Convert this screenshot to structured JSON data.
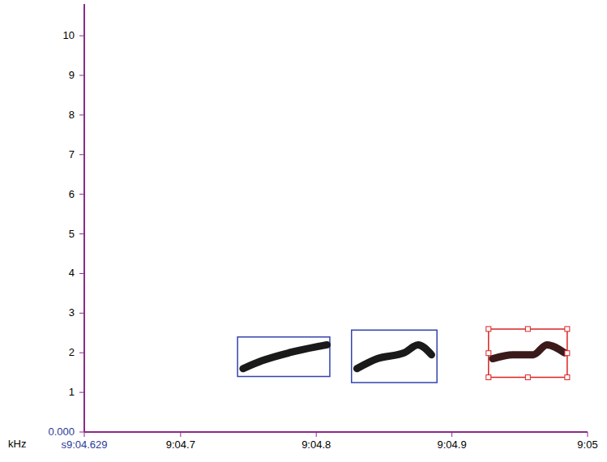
{
  "chart_data": {
    "type": "spectrogram",
    "y_label": "kHz",
    "xlim": [
      544.629,
      545.0
    ],
    "xticks": [
      {
        "value": 544.629,
        "label": "s9:04.629"
      },
      {
        "value": 544.7,
        "label": "9:04.7"
      },
      {
        "value": 544.8,
        "label": "9:04.8"
      },
      {
        "value": 544.9,
        "label": "9:04.9"
      },
      {
        "value": 545.0,
        "label": "9:05"
      }
    ],
    "ylim": [
      0,
      10.8
    ],
    "yticks": [
      {
        "value": 0,
        "label": "0.000"
      },
      1,
      2,
      3,
      4,
      5,
      6,
      7,
      8,
      9,
      10
    ],
    "calls": [
      {
        "color": "#1a1a1a",
        "x": [
          544.746,
          544.76,
          544.78,
          544.8,
          544.808
        ],
        "y": [
          1.6,
          1.8,
          2.0,
          2.15,
          2.2
        ]
      },
      {
        "color": "#1a1a1a",
        "x": [
          544.83,
          544.845,
          544.865,
          544.875,
          544.885
        ],
        "y": [
          1.6,
          1.85,
          2.0,
          2.2,
          1.95
        ]
      },
      {
        "color": "#3a1a1a",
        "x": [
          544.93,
          544.945,
          544.96,
          544.97,
          544.983
        ],
        "y": [
          1.85,
          1.95,
          1.95,
          2.2,
          2.0
        ]
      }
    ],
    "boxes": [
      {
        "color": "#3344aa",
        "x": [
          544.742,
          544.81
        ],
        "y": [
          1.4,
          2.4
        ]
      },
      {
        "color": "#3344aa",
        "x": [
          544.826,
          544.889
        ],
        "y": [
          1.25,
          2.57
        ]
      },
      {
        "color": "#dd2222",
        "x": [
          544.927,
          544.985
        ],
        "y": [
          1.38,
          2.6
        ]
      }
    ]
  }
}
